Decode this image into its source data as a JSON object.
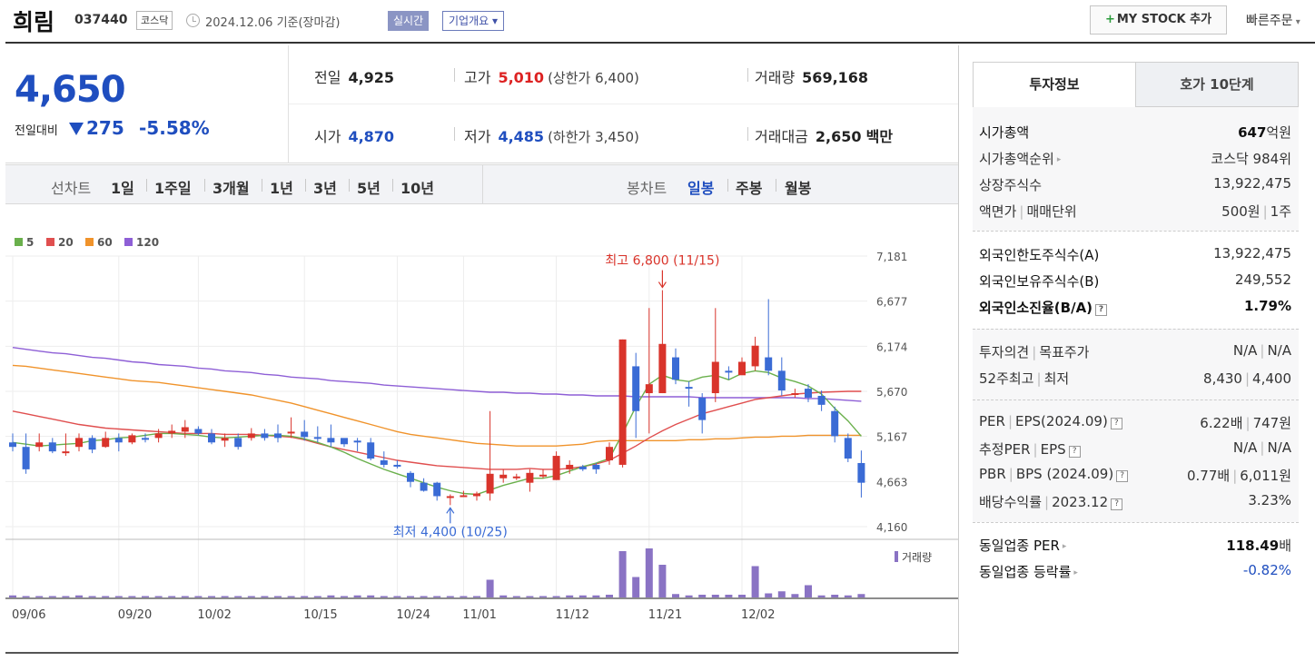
{
  "header": {
    "name": "희림",
    "code": "037440",
    "market": "코스닥",
    "date": "2024.12.06 기준(장마감)",
    "realtime": "실시간",
    "profile": "기업개요",
    "mystock": "MY STOCK 추가",
    "quick_order": "빠른주문"
  },
  "price": {
    "current": "4,650",
    "change_label": "전일대비",
    "change": "275",
    "change_pct": "-5.58%",
    "prev_label": "전일",
    "prev": "4,925",
    "high_label": "고가",
    "high": "5,010",
    "upper_limit": "(상한가 6,400)",
    "volume_label": "거래량",
    "volume": "569,168",
    "open_label": "시가",
    "open": "4,870",
    "low_label": "저가",
    "low": "4,485",
    "lower_limit": "(하한가 3,450)",
    "amount_label": "거래대금",
    "amount": "2,650",
    "amount_unit": "백만"
  },
  "chart_nav": {
    "line_label": "선차트",
    "periods": [
      "1일",
      "1주일",
      "3개월",
      "1년",
      "3년",
      "5년",
      "10년"
    ],
    "candle_label": "봉차트",
    "candles": [
      "일봉",
      "주봉",
      "월봉"
    ],
    "active_candle": "일봉"
  },
  "chart_data": {
    "type": "candlestick",
    "legend": [
      {
        "name": "5",
        "color": "#6ab04c"
      },
      {
        "name": "20",
        "color": "#e04f4f"
      },
      {
        "name": "60",
        "color": "#f0932b"
      },
      {
        "name": "120",
        "color": "#8e5fd6"
      }
    ],
    "y_ticks": [
      "7,181",
      "6,677",
      "6,174",
      "5,670",
      "5,167",
      "4,663",
      "4,160"
    ],
    "ylim": [
      4160,
      7181
    ],
    "x_ticks": [
      "09/06",
      "09/20",
      "10/02",
      "10/15",
      "10/24",
      "11/01",
      "11/12",
      "11/21",
      "12/02"
    ],
    "x_tick_index": [
      0,
      8,
      14,
      22,
      29,
      34,
      41,
      48,
      55
    ],
    "high_annotation": "최고 6,800 (11/15)",
    "low_annotation": "최저 4,400 (10/25)",
    "volume_label": "거래량",
    "candles": [
      [
        5100,
        5050,
        5200,
        5000
      ],
      [
        5050,
        4800,
        5200,
        4750
      ],
      [
        5050,
        5100,
        5200,
        5000
      ],
      [
        5100,
        5000,
        5150,
        4980
      ],
      [
        4980,
        5000,
        5200,
        4950
      ],
      [
        5050,
        5150,
        5200,
        5000
      ],
      [
        5150,
        5020,
        5180,
        4980
      ],
      [
        5050,
        5150,
        5220,
        5040
      ],
      [
        5150,
        5100,
        5200,
        5000
      ],
      [
        5100,
        5180,
        5200,
        5080
      ],
      [
        5150,
        5130,
        5200,
        5100
      ],
      [
        5150,
        5200,
        5250,
        5100
      ],
      [
        5200,
        5230,
        5300,
        5150
      ],
      [
        5220,
        5270,
        5350,
        5150
      ],
      [
        5250,
        5200,
        5280,
        5180
      ],
      [
        5200,
        5100,
        5250,
        5080
      ],
      [
        5120,
        5150,
        5200,
        5050
      ],
      [
        5150,
        5050,
        5200,
        5020
      ],
      [
        5150,
        5200,
        5260,
        5120
      ],
      [
        5200,
        5150,
        5250,
        5120
      ],
      [
        5200,
        5150,
        5300,
        5100
      ],
      [
        5200,
        5220,
        5380,
        5150
      ],
      [
        5220,
        5160,
        5350,
        5120
      ],
      [
        5160,
        5150,
        5280,
        5100
      ],
      [
        5150,
        5100,
        5300,
        5050
      ],
      [
        5150,
        5080,
        5120,
        5050
      ],
      [
        5120,
        5100,
        5150,
        5000
      ],
      [
        5100,
        4920,
        5150,
        4900
      ],
      [
        4900,
        4850,
        5000,
        4820
      ],
      [
        4850,
        4840,
        4900,
        4810
      ],
      [
        4760,
        4660,
        4780,
        4600
      ],
      [
        4650,
        4560,
        4700,
        4550
      ],
      [
        4650,
        4500,
        4660,
        4450
      ],
      [
        4480,
        4500,
        4520,
        4400
      ],
      [
        4500,
        4510,
        4560,
        4490
      ],
      [
        4500,
        4530,
        4550,
        4450
      ],
      [
        4530,
        4750,
        5450,
        4450
      ],
      [
        4700,
        4740,
        4800,
        4650
      ],
      [
        4700,
        4720,
        4750,
        4680
      ],
      [
        4650,
        4760,
        4800,
        4550
      ],
      [
        4720,
        4740,
        4800,
        4700
      ],
      [
        4680,
        4950,
        5000,
        4680
      ],
      [
        4800,
        4850,
        4900,
        4750
      ],
      [
        4830,
        4800,
        4850,
        4780
      ],
      [
        4850,
        4800,
        4870,
        4750
      ],
      [
        4900,
        5050,
        5100,
        4850
      ],
      [
        4850,
        6250,
        6250,
        4820
      ],
      [
        5950,
        5450,
        6100,
        5150
      ],
      [
        5650,
        5750,
        6600,
        5200
      ],
      [
        5650,
        6200,
        6800,
        5650
      ],
      [
        6050,
        5800,
        6150,
        5750
      ],
      [
        5720,
        5700,
        5780,
        5500
      ],
      [
        5600,
        5350,
        5650,
        5200
      ],
      [
        5650,
        6000,
        6600,
        5550
      ],
      [
        5900,
        5880,
        5950,
        5800
      ],
      [
        5850,
        6000,
        6050,
        5900
      ],
      [
        5950,
        6180,
        6280,
        5900
      ],
      [
        6050,
        5900,
        6700,
        5850
      ],
      [
        5900,
        5680,
        6050,
        5620
      ],
      [
        5650,
        5650,
        5700,
        5600
      ],
      [
        5700,
        5600,
        5750,
        5550
      ],
      [
        5620,
        5520,
        5680,
        5450
      ],
      [
        5450,
        5170,
        5500,
        5100
      ],
      [
        5150,
        4920,
        5200,
        4880
      ],
      [
        4870,
        4650,
        5010,
        4485
      ]
    ],
    "volumes": [
      3,
      2,
      2,
      2,
      2,
      3,
      2,
      2,
      2,
      2,
      2,
      2,
      2,
      2,
      2,
      2,
      2,
      2,
      2,
      2,
      2,
      2,
      2,
      2,
      3,
      2,
      3,
      3,
      2,
      2,
      2,
      2,
      2,
      2,
      2,
      2,
      26,
      3,
      2,
      2,
      2,
      2,
      3,
      3,
      3,
      4,
      68,
      30,
      72,
      48,
      5,
      3,
      4,
      4,
      4,
      4,
      46,
      6,
      9,
      5,
      18,
      3,
      4,
      3,
      5
    ],
    "ma5": [
      5100,
      5080,
      5060,
      5070,
      5080,
      5090,
      5120,
      5130,
      5150,
      5160,
      5180,
      5200,
      5200,
      5190,
      5180,
      5160,
      5150,
      5160,
      5170,
      5180,
      5180,
      5170,
      5140,
      5100,
      5050,
      4990,
      4920,
      4860,
      4800,
      4750,
      4700,
      4650,
      4600,
      4560,
      4530,
      4520,
      4570,
      4620,
      4660,
      4700,
      4700,
      4730,
      4780,
      4830,
      4870,
      4920,
      5200,
      5500,
      5750,
      5850,
      5800,
      5780,
      5830,
      5850,
      5800,
      5870,
      5900,
      5880,
      5820,
      5780,
      5730,
      5640,
      5480,
      5340,
      5170
    ],
    "ma20": [
      5450,
      5420,
      5390,
      5360,
      5330,
      5300,
      5280,
      5260,
      5250,
      5240,
      5230,
      5220,
      5210,
      5200,
      5200,
      5200,
      5190,
      5190,
      5190,
      5180,
      5170,
      5160,
      5130,
      5090,
      5050,
      5020,
      4990,
      4960,
      4930,
      4900,
      4880,
      4860,
      4840,
      4830,
      4820,
      4810,
      4800,
      4800,
      4800,
      4810,
      4800,
      4800,
      4810,
      4830,
      4860,
      4900,
      4980,
      5060,
      5150,
      5230,
      5300,
      5360,
      5420,
      5460,
      5500,
      5540,
      5580,
      5600,
      5620,
      5640,
      5650,
      5660,
      5665,
      5670,
      5670
    ],
    "ma60": [
      5960,
      5950,
      5930,
      5910,
      5890,
      5870,
      5850,
      5830,
      5810,
      5790,
      5780,
      5770,
      5750,
      5730,
      5710,
      5690,
      5670,
      5650,
      5630,
      5600,
      5570,
      5540,
      5500,
      5460,
      5420,
      5380,
      5340,
      5300,
      5260,
      5220,
      5190,
      5170,
      5150,
      5130,
      5110,
      5090,
      5080,
      5070,
      5060,
      5060,
      5060,
      5060,
      5070,
      5080,
      5110,
      5120,
      5120,
      5120,
      5120,
      5120,
      5120,
      5130,
      5130,
      5140,
      5140,
      5150,
      5160,
      5160,
      5170,
      5170,
      5180,
      5180,
      5180,
      5180,
      5180
    ],
    "ma120": [
      6160,
      6140,
      6120,
      6100,
      6090,
      6070,
      6050,
      6040,
      6020,
      6000,
      5990,
      5970,
      5960,
      5950,
      5930,
      5920,
      5900,
      5890,
      5880,
      5860,
      5850,
      5830,
      5820,
      5810,
      5790,
      5780,
      5770,
      5760,
      5740,
      5730,
      5720,
      5710,
      5700,
      5690,
      5680,
      5670,
      5660,
      5660,
      5650,
      5650,
      5640,
      5640,
      5630,
      5630,
      5620,
      5620,
      5620,
      5610,
      5610,
      5610,
      5610,
      5610,
      5600,
      5600,
      5600,
      5600,
      5600,
      5600,
      5600,
      5600,
      5590,
      5590,
      5580,
      5570,
      5560
    ]
  },
  "right_panel": {
    "tabs": [
      "투자정보",
      "호가 10단계"
    ],
    "g1": [
      {
        "k": "시가총액",
        "v": "647",
        "u": "억원"
      },
      {
        "k": "시가총액순위",
        "v": "코스닥 984위"
      },
      {
        "k": "상장주식수",
        "v": "13,922,475"
      },
      {
        "k1": "액면가",
        "k2": "매매단위",
        "v1": "500원",
        "v2": "1주"
      }
    ],
    "g2": [
      {
        "k": "외국인한도주식수(A)",
        "v": "13,922,475"
      },
      {
        "k": "외국인보유주식수(B)",
        "v": "249,552"
      },
      {
        "k": "외국인소진율(B/A)",
        "v": "1.79%"
      }
    ],
    "g3": [
      {
        "k1": "투자의견",
        "k2": "목표주가",
        "v1": "N/A",
        "v2": "N/A"
      },
      {
        "k1": "52주최고",
        "k2": "최저",
        "v1": "8,430",
        "v2": "4,400"
      }
    ],
    "g4": [
      {
        "k1": "PER",
        "k2": "EPS(2024.09)",
        "v1": "6.22배",
        "v2": "747원"
      },
      {
        "k1": "추정PER",
        "k2": "EPS",
        "v1": "N/A",
        "v2": "N/A"
      },
      {
        "k1": "PBR",
        "k2": "BPS (2024.09)",
        "v1": "0.77배",
        "v2": "6,011원"
      },
      {
        "k1": "배당수익률",
        "k2": "2023.12",
        "v": "3.23%"
      }
    ],
    "g5": [
      {
        "k": "동일업종 PER",
        "v": "118.49",
        "u": "배"
      },
      {
        "k": "동일업종 등락률",
        "v": "-0.82%"
      }
    ]
  }
}
